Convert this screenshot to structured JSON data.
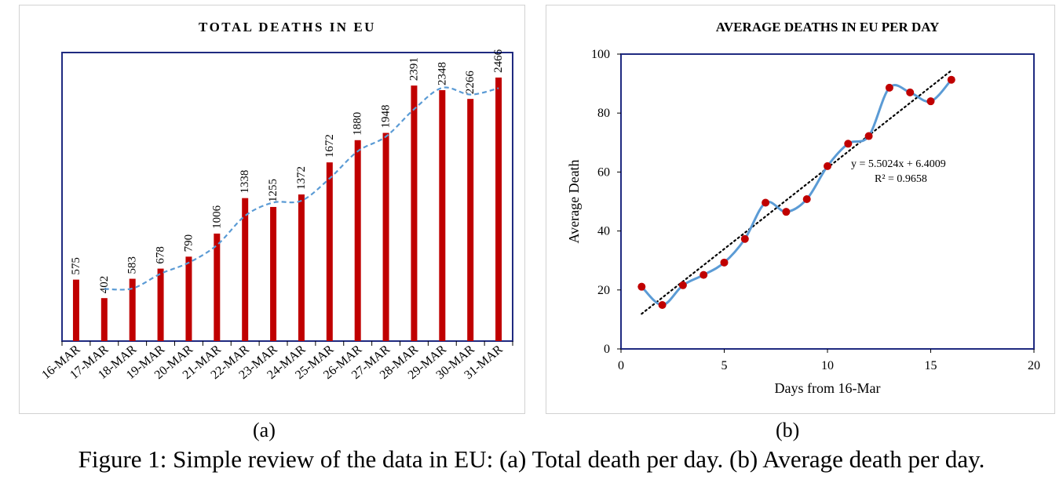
{
  "panels": [
    {
      "label": "(a)"
    },
    {
      "label": "(b)"
    }
  ],
  "caption": "Figure 1: Simple review of the data in EU: (a) Total death per day. (b) Average death per day.",
  "colors": {
    "bar": "#c00000",
    "trend_line": "#5b9bd5",
    "marker": "#c00000",
    "frame": "#1f2a80",
    "linear_fit": "#000000"
  },
  "chart_data": [
    {
      "type": "bar",
      "title": "TOTAL DEATHS IN EU",
      "xlabel": "",
      "ylabel": "",
      "categories": [
        "16-MAR",
        "17-MAR",
        "18-MAR",
        "19-MAR",
        "20-MAR",
        "21-MAR",
        "22-MAR",
        "23-MAR",
        "24-MAR",
        "25-MAR",
        "26-MAR",
        "27-MAR",
        "28-MAR",
        "29-MAR",
        "30-MAR",
        "31-MAR"
      ],
      "values": [
        575,
        402,
        583,
        678,
        790,
        1006,
        1338,
        1255,
        1372,
        1672,
        1880,
        1948,
        2391,
        2348,
        2266,
        2466
      ],
      "trendline": {
        "type": "moving-average",
        "period": 2,
        "style": "dashed"
      },
      "ylim": [
        0,
        2700
      ],
      "data_labels": true,
      "grid": false
    },
    {
      "type": "scatter",
      "title": "AVERAGE DEATHS IN EU PER DAY",
      "xlabel": "Days from 16-Mar",
      "ylabel": "Average Death",
      "x": [
        1,
        2,
        3,
        4,
        5,
        6,
        7,
        8,
        9,
        10,
        11,
        12,
        13,
        14,
        15,
        16
      ],
      "y": [
        21.1,
        14.9,
        21.6,
        25.1,
        29.3,
        37.3,
        49.6,
        46.5,
        50.8,
        62.0,
        69.6,
        72.2,
        88.6,
        87.0,
        84.0,
        91.3
      ],
      "xlim": [
        0,
        20
      ],
      "ylim": [
        0,
        100
      ],
      "xticks": [
        0,
        5,
        10,
        15,
        20
      ],
      "yticks": [
        0,
        20,
        40,
        60,
        80,
        100
      ],
      "smoothed_line": true,
      "trendline": {
        "type": "linear",
        "slope": 5.5024,
        "intercept": 6.4009,
        "equation": "y = 5.5024x + 6.4009",
        "r2": "R² = 0.9658",
        "style": "dotted"
      },
      "grid": false
    }
  ]
}
